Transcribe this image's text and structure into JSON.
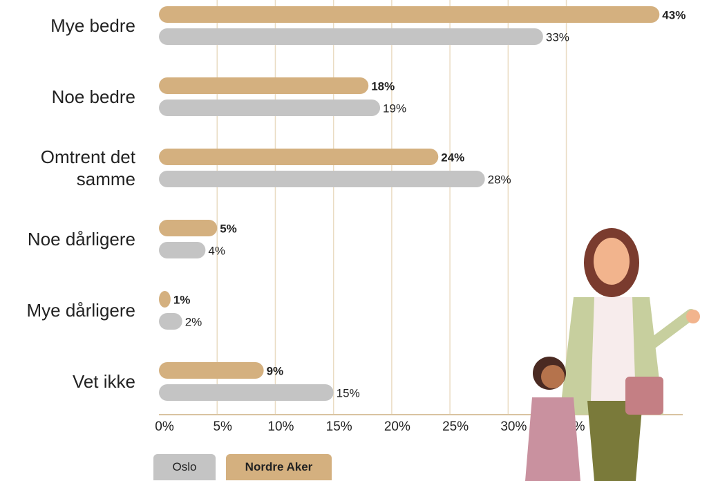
{
  "chart_data": {
    "type": "bar",
    "orientation": "horizontal",
    "categories": [
      "Mye bedre",
      "Noe bedre",
      "Omtrent det samme",
      "Noe dårligere",
      "Mye dårligere",
      "Vet ikke"
    ],
    "series": [
      {
        "name": "Nordre Aker",
        "color": "#d4b07f",
        "values": [
          43,
          18,
          24,
          5,
          1,
          9
        ],
        "value_labels": [
          "43%",
          "18%",
          "24%",
          "5%",
          "1%",
          "9%"
        ]
      },
      {
        "name": "Oslo",
        "color": "#c4c4c4",
        "values": [
          33,
          19,
          28,
          4,
          2,
          15
        ],
        "value_labels": [
          "33%",
          "19%",
          "28%",
          "4%",
          "2%",
          "15%"
        ]
      }
    ],
    "xlim": [
      0,
      45
    ],
    "xticks": [
      {
        "value": 0,
        "label": "0%"
      },
      {
        "value": 5,
        "label": "5%"
      },
      {
        "value": 10,
        "label": "10%"
      },
      {
        "value": 15,
        "label": "15%"
      },
      {
        "value": 20,
        "label": "20%"
      },
      {
        "value": 25,
        "label": "25%"
      },
      {
        "value": 30,
        "label": "30%"
      },
      {
        "value": 35,
        "label": "35%"
      }
    ],
    "grid": true
  }
}
